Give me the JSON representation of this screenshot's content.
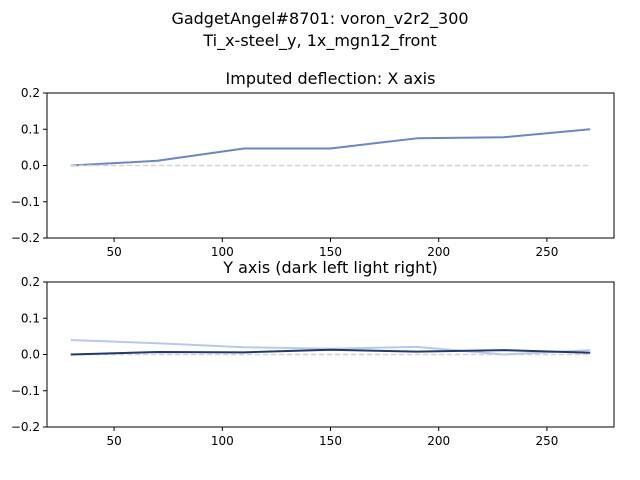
{
  "figure": {
    "suptitle_line1": "GadgetAngel#8701: voron_v2r2_300",
    "suptitle_line2": "Ti_x-steel_y, 1x_mgn12_front"
  },
  "chart_data": [
    {
      "type": "line",
      "title": "Imputed deflection: X axis",
      "xlabel": "",
      "ylabel": "",
      "xlim": [
        19,
        281
      ],
      "ylim": [
        -0.2,
        0.2
      ],
      "xticks": [
        50,
        100,
        150,
        200,
        250
      ],
      "yticks": [
        -0.2,
        -0.1,
        0.0,
        0.1,
        0.2
      ],
      "ytick_labels": [
        "−0.2",
        "−0.1",
        "0.0",
        "0.1",
        "0.2"
      ],
      "grid": false,
      "x": [
        30,
        70,
        110,
        150,
        190,
        230,
        270
      ],
      "series": [
        {
          "values": [
            0.0,
            0.013,
            0.047,
            0.047,
            0.075,
            0.078,
            0.1
          ],
          "color": "#6a86c5",
          "style": "solid"
        },
        {
          "values": [
            0.0,
            0.0,
            0.0,
            0.0,
            0.0,
            0.0,
            0.0
          ],
          "color": "#d3d3d3",
          "style": "dashed"
        }
      ]
    },
    {
      "type": "line",
      "title": "Y axis (dark left light right)",
      "xlabel": "",
      "ylabel": "",
      "xlim": [
        19,
        281
      ],
      "ylim": [
        -0.2,
        0.2
      ],
      "xticks": [
        50,
        100,
        150,
        200,
        250
      ],
      "yticks": [
        -0.2,
        -0.1,
        0.0,
        0.1,
        0.2
      ],
      "ytick_labels": [
        "−0.2",
        "−0.1",
        "0.0",
        "0.1",
        "0.2"
      ],
      "grid": false,
      "x": [
        30,
        70,
        110,
        150,
        190,
        230,
        270
      ],
      "series": [
        {
          "values": [
            0.0,
            0.0,
            0.0,
            0.0,
            0.0,
            0.0,
            0.0
          ],
          "color": "#d3d3d3",
          "style": "dashed"
        },
        {
          "values": [
            0.04,
            0.031,
            0.02,
            0.016,
            0.021,
            0.0,
            0.012
          ],
          "color": "#b8c9e8",
          "style": "solid"
        },
        {
          "values": [
            0.0,
            0.007,
            0.006,
            0.013,
            0.008,
            0.012,
            0.005
          ],
          "color": "#1f3a6b",
          "style": "solid"
        }
      ]
    }
  ]
}
